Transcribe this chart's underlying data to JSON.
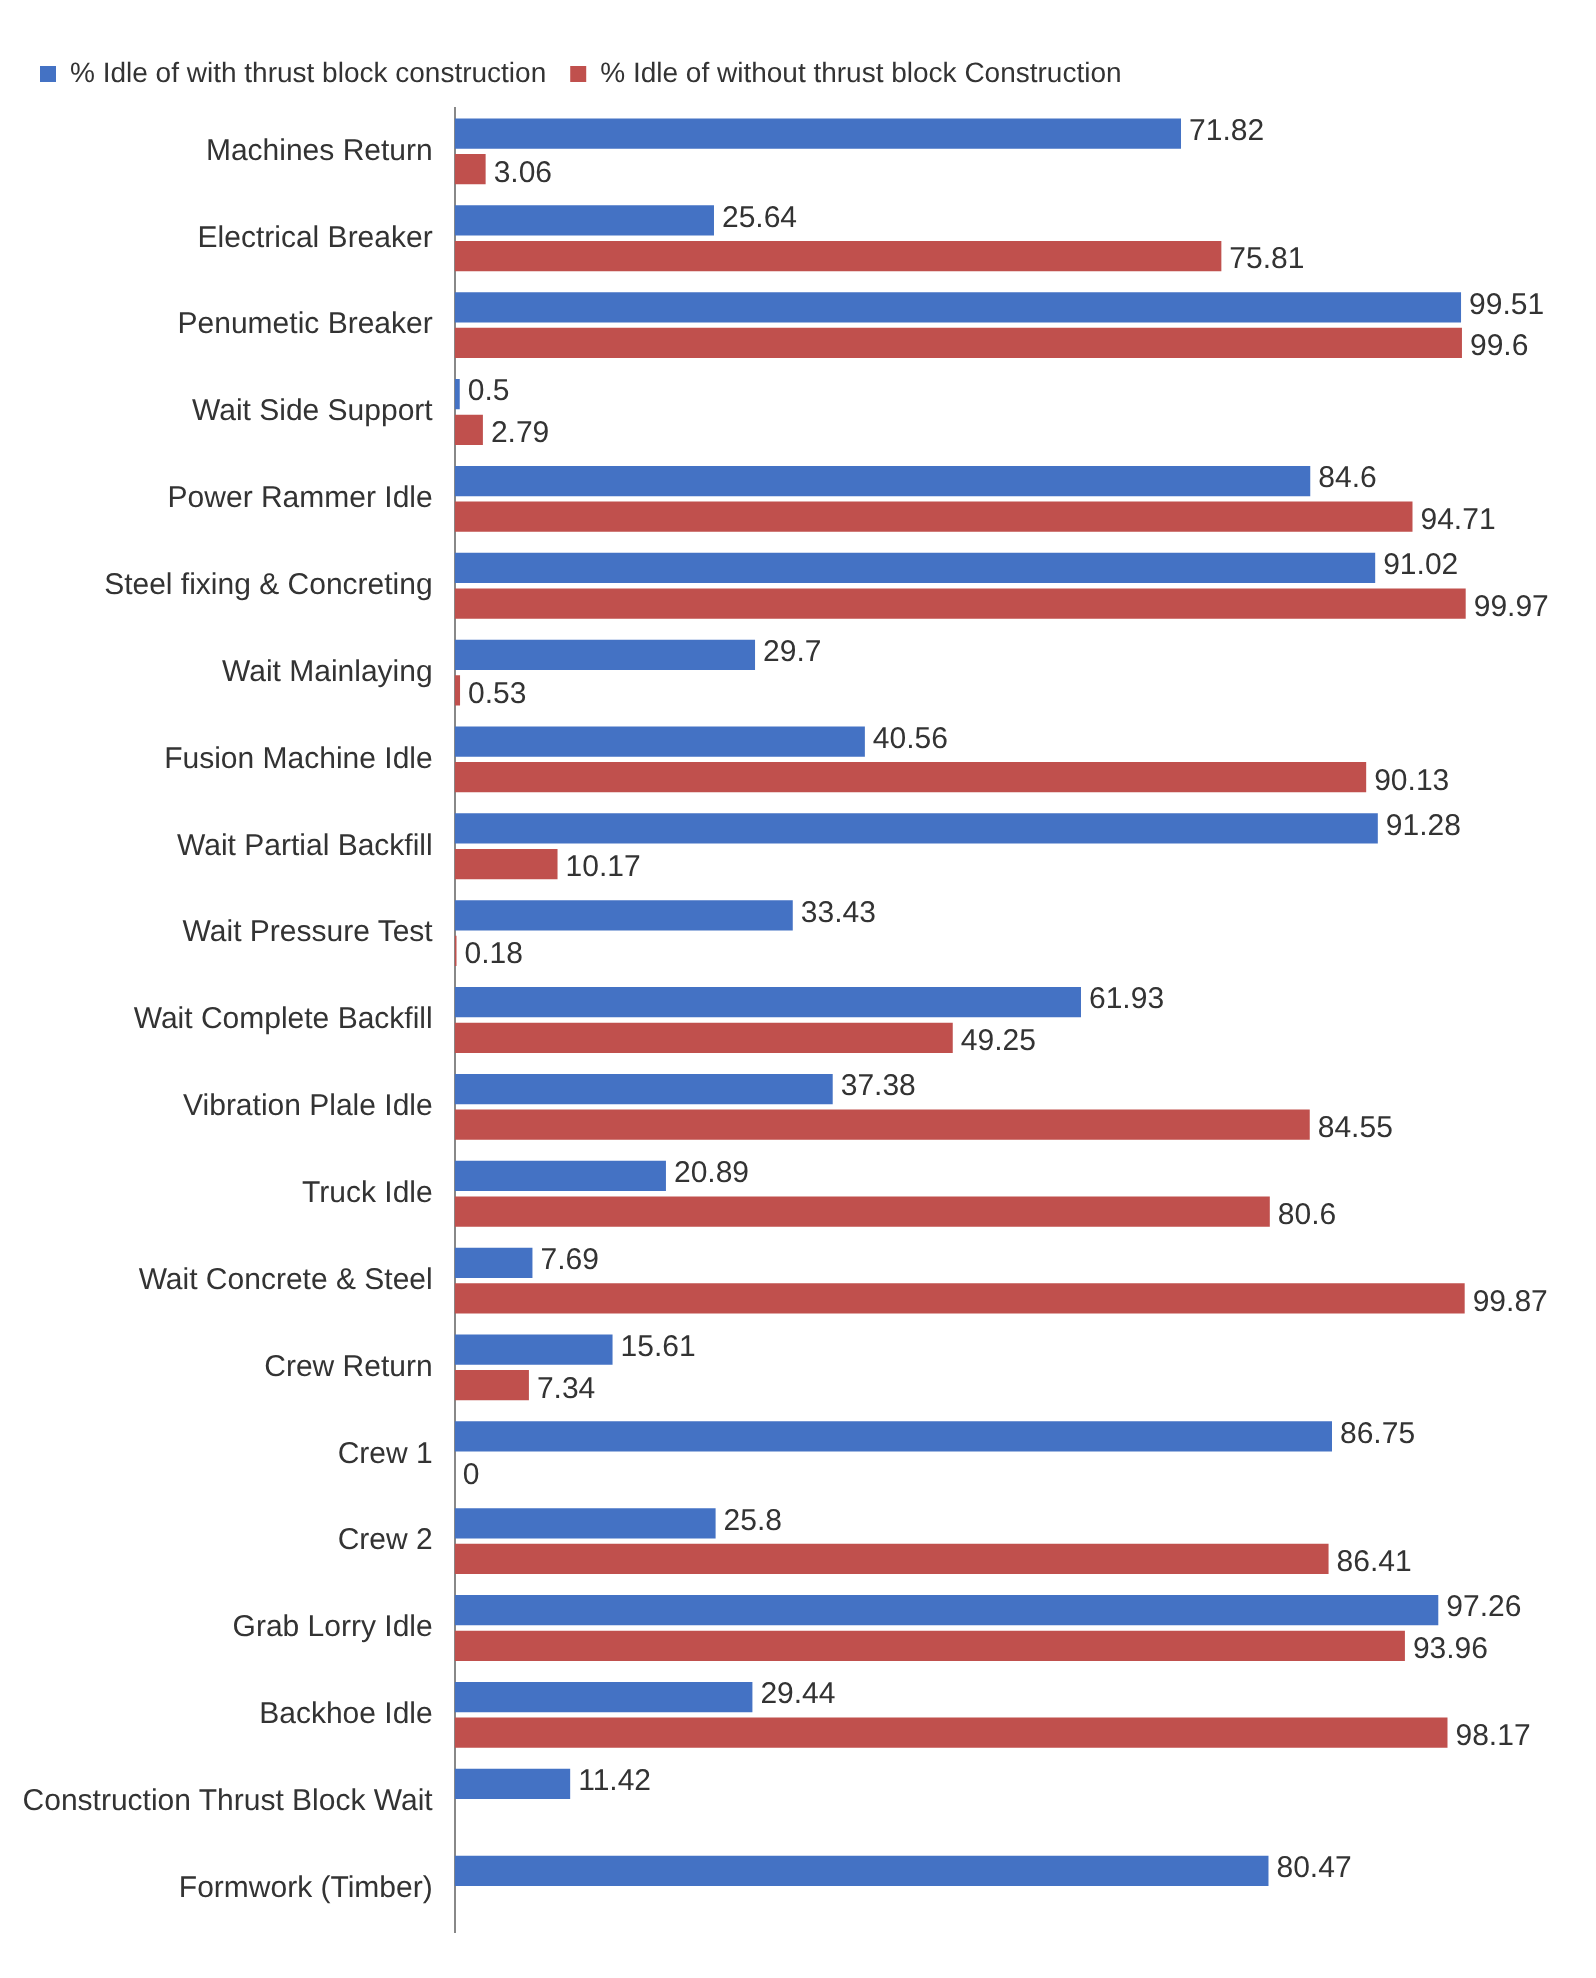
{
  "chart_data": {
    "type": "bar",
    "orientation": "horizontal",
    "categories": [
      "Machines Return",
      "Electrical Breaker",
      "Penumetic Breaker",
      "Wait Side Support",
      "Power Rammer Idle",
      "Steel fixing & Concreting",
      "Wait Mainlaying",
      "Fusion Machine Idle",
      "Wait Partial Backfill",
      "Wait Pressure Test",
      "Wait Complete Backfill",
      "Vibration Plale Idle",
      "Truck Idle",
      "Wait Concrete & Steel",
      "Crew Return",
      "Crew 1",
      "Crew 2",
      "Grab Lorry Idle",
      "Backhoe Idle",
      "Construction Thrust Block Wait",
      "Formwork (Timber)"
    ],
    "series": [
      {
        "name": "% Idle of with thrust block construction",
        "color": "#4472c4",
        "values": [
          71.82,
          25.64,
          99.51,
          0.5,
          84.6,
          91.02,
          29.7,
          40.56,
          91.28,
          33.43,
          61.93,
          37.38,
          20.89,
          7.69,
          15.61,
          86.75,
          25.8,
          97.26,
          29.44,
          11.42,
          80.47
        ]
      },
      {
        "name": "% Idle of without thrust block Construction",
        "color": "#c0504d",
        "values": [
          3.06,
          75.81,
          99.6,
          2.79,
          94.71,
          99.97,
          0.53,
          90.13,
          10.17,
          0.18,
          49.25,
          84.55,
          80.6,
          99.87,
          7.34,
          0,
          86.41,
          93.96,
          98.17,
          null,
          null
        ]
      }
    ],
    "data_labels": true,
    "legend": "top",
    "grid": false
  }
}
